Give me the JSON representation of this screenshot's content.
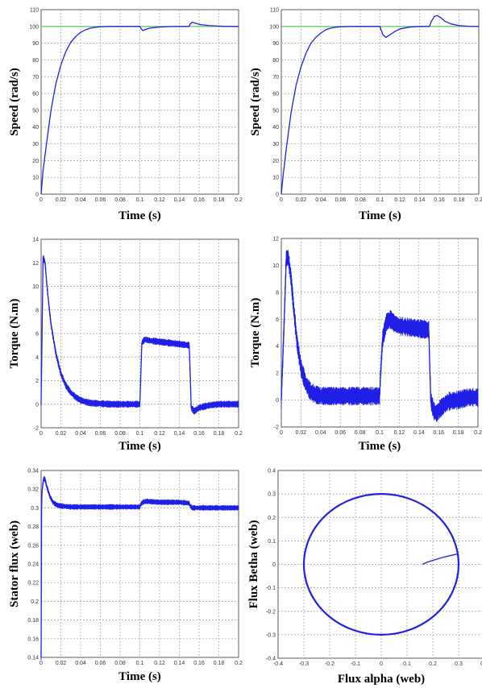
{
  "chart_data": [
    {
      "type": "line",
      "xlabel": "Time (s)",
      "ylabel": "Speed (rad/s)",
      "xlim": [
        0,
        0.2
      ],
      "ylim": [
        0,
        110
      ],
      "xticks": [
        "0",
        "0.02",
        "0.04",
        "0.06",
        "0.08",
        "0.1",
        "0.12",
        "0.14",
        "0.16",
        "0.18",
        "0.2"
      ],
      "yticks": [
        "0",
        "10",
        "20",
        "30",
        "40",
        "50",
        "60",
        "70",
        "80",
        "90",
        "100",
        "110"
      ],
      "grid": true,
      "series": [
        {
          "color": "#66cc66",
          "x": [
            0,
            0.2
          ],
          "y": [
            100,
            100
          ]
        },
        {
          "color": "#1f1fe6",
          "noise": 0,
          "x": [
            0,
            0.002,
            0.005,
            0.01,
            0.015,
            0.02,
            0.025,
            0.03,
            0.035,
            0.04,
            0.045,
            0.05,
            0.055,
            0.06,
            0.07,
            0.08,
            0.09,
            0.1,
            0.101,
            0.103,
            0.106,
            0.11,
            0.12,
            0.13,
            0.14,
            0.15,
            0.151,
            0.153,
            0.156,
            0.16,
            0.17,
            0.18,
            0.19,
            0.2
          ],
          "y": [
            0,
            14,
            28,
            50,
            66,
            77,
            85,
            90.5,
            94,
            96.5,
            98,
            99,
            99.5,
            99.8,
            100,
            100,
            100,
            100,
            99,
            97.5,
            98.3,
            99,
            99.6,
            99.9,
            100,
            100,
            101.5,
            102.5,
            102,
            101.2,
            100.5,
            100.2,
            100,
            100
          ]
        }
      ]
    },
    {
      "type": "line",
      "xlabel": "Time (s)",
      "ylabel": "Speed (rad/s)",
      "xlim": [
        0,
        0.2
      ],
      "ylim": [
        0,
        110
      ],
      "xticks": [
        "0",
        "0.02",
        "0.04",
        "0.06",
        "0.08",
        "0.1",
        "0.12",
        "0.14",
        "0.16",
        "0.18",
        "0.2"
      ],
      "yticks": [
        "0",
        "10",
        "20",
        "30",
        "40",
        "50",
        "60",
        "70",
        "80",
        "90",
        "100",
        "110"
      ],
      "grid": true,
      "series": [
        {
          "color": "#66cc66",
          "x": [
            0,
            0.2
          ],
          "y": [
            100,
            100
          ]
        },
        {
          "color": "#1f1fe6",
          "noise": 0,
          "x": [
            0,
            0.002,
            0.005,
            0.01,
            0.015,
            0.02,
            0.025,
            0.03,
            0.035,
            0.04,
            0.045,
            0.05,
            0.055,
            0.06,
            0.07,
            0.08,
            0.09,
            0.1,
            0.101,
            0.103,
            0.106,
            0.11,
            0.115,
            0.12,
            0.13,
            0.14,
            0.15,
            0.152,
            0.155,
            0.158,
            0.162,
            0.166,
            0.172,
            0.18,
            0.19,
            0.2
          ],
          "y": [
            0,
            12,
            27,
            49,
            65,
            76,
            84,
            90,
            93.5,
            96,
            98,
            99,
            99.5,
            99.8,
            100,
            100,
            100,
            100,
            98,
            95,
            93.5,
            95,
            97,
            98.5,
            99.6,
            100,
            100,
            103,
            106,
            106.5,
            105,
            103,
            101.5,
            100.5,
            100.1,
            100
          ]
        }
      ]
    },
    {
      "type": "line",
      "xlabel": "Time (s)",
      "ylabel": "Torque (N.m)",
      "xlim": [
        0,
        0.2
      ],
      "ylim": [
        -2,
        14
      ],
      "xticks": [
        "0",
        "0.02",
        "0.04",
        "0.06",
        "0.08",
        "0.1",
        "0.12",
        "0.14",
        "0.16",
        "0.18",
        "0.2"
      ],
      "yticks": [
        "-2",
        "0",
        "2",
        "4",
        "6",
        "8",
        "10",
        "12",
        "14"
      ],
      "grid": true,
      "series": [
        {
          "color": "#1f1fe6",
          "noise": 0.3,
          "x": [
            0,
            0.002,
            0.004,
            0.006,
            0.008,
            0.01,
            0.015,
            0.02,
            0.025,
            0.03,
            0.035,
            0.04,
            0.045,
            0.05,
            0.06,
            0.07,
            0.08,
            0.09,
            0.1,
            0.101,
            0.102,
            0.105,
            0.11,
            0.12,
            0.13,
            0.14,
            0.15,
            0.151,
            0.152,
            0.155,
            0.16,
            0.17,
            0.18,
            0.19,
            0.2
          ],
          "y": [
            0,
            12.5,
            12,
            10,
            8.3,
            6.8,
            4.3,
            2.6,
            1.6,
            1,
            0.6,
            0.35,
            0.2,
            0.1,
            0.05,
            0,
            0,
            0,
            0,
            2.5,
            5.2,
            5.5,
            5.4,
            5.3,
            5.2,
            5.1,
            5,
            2.5,
            -0.3,
            -0.6,
            -0.3,
            -0.1,
            0,
            0,
            0
          ]
        }
      ]
    },
    {
      "type": "line",
      "xlabel": "Time (s)",
      "ylabel": "Torque (N.m)",
      "xlim": [
        0,
        0.2
      ],
      "ylim": [
        -2,
        12
      ],
      "xticks": [
        "0",
        "0.02",
        "0.04",
        "0.06",
        "0.08",
        "0.1",
        "0.12",
        "0.14",
        "0.16",
        "0.18",
        "0.2"
      ],
      "yticks": [
        "-2",
        "0",
        "2",
        "4",
        "6",
        "8",
        "10",
        "12"
      ],
      "grid": true,
      "series": [
        {
          "color": "#1f1fe6",
          "noise": 0.7,
          "x": [
            0,
            0.003,
            0.005,
            0.007,
            0.01,
            0.013,
            0.016,
            0.02,
            0.025,
            0.03,
            0.035,
            0.04,
            0.05,
            0.06,
            0.07,
            0.08,
            0.09,
            0.1,
            0.101,
            0.103,
            0.107,
            0.111,
            0.115,
            0.12,
            0.13,
            0.14,
            0.15,
            0.151,
            0.152,
            0.155,
            0.158,
            0.162,
            0.17,
            0.18,
            0.19,
            0.2
          ],
          "y": [
            0,
            6,
            10.5,
            10.6,
            9,
            6.5,
            4.3,
            2.4,
            1.2,
            0.6,
            0.4,
            0.3,
            0.3,
            0.3,
            0.3,
            0.3,
            0.3,
            0.3,
            2,
            4.5,
            5.8,
            6,
            5.7,
            5.5,
            5.4,
            5.3,
            5.2,
            2.5,
            0,
            -0.8,
            -1,
            -0.6,
            -0.1,
            0,
            0.2,
            0.2
          ]
        }
      ]
    },
    {
      "type": "line",
      "xlabel": "Time (s)",
      "ylabel": "Stator flux (web)",
      "xlim": [
        0,
        0.2
      ],
      "ylim": [
        0.14,
        0.34
      ],
      "xticks": [
        "0",
        "0.02",
        "0.04",
        "0.06",
        "0.08",
        "0.1",
        "0.12",
        "0.14",
        "0.16",
        "0.18",
        "0.2"
      ],
      "yticks": [
        "0.14",
        "0.16",
        "0.18",
        "0.2",
        "0.22",
        "0.24",
        "0.26",
        "0.28",
        "0.3",
        "0.32",
        "0.34"
      ],
      "grid": true,
      "series": [
        {
          "color": "#1f1fe6",
          "noise": 0.003,
          "x": [
            0,
            0.0005,
            0.001,
            0.002,
            0.003,
            0.004,
            0.006,
            0.009,
            0.012,
            0.016,
            0.02,
            0.03,
            0.04,
            0.06,
            0.08,
            0.1,
            0.101,
            0.103,
            0.106,
            0.12,
            0.14,
            0.15,
            0.151,
            0.153,
            0.17,
            0.2
          ],
          "y": [
            0.14,
            0.3,
            0.318,
            0.328,
            0.332,
            0.33,
            0.322,
            0.312,
            0.306,
            0.303,
            0.302,
            0.301,
            0.301,
            0.301,
            0.301,
            0.301,
            0.304,
            0.306,
            0.307,
            0.306,
            0.306,
            0.305,
            0.302,
            0.3,
            0.3,
            0.3
          ]
        }
      ]
    },
    {
      "type": "line",
      "xlabel": "Flux alpha (web)",
      "ylabel": "Flux Betha (web)",
      "xlim": [
        -0.4,
        0.4
      ],
      "ylim": [
        -0.4,
        0.4
      ],
      "xticks": [
        "-0.4",
        "-0.3",
        "-0.2",
        "-0.1",
        "0",
        "0.1",
        "0.2",
        "0.3",
        "0.4"
      ],
      "yticks": [
        "-0.4",
        "-0.3",
        "-0.2",
        "-0.1",
        "0",
        "0.1",
        "0.2",
        "0.3",
        "0.4"
      ],
      "grid": true,
      "circle": {
        "cx": 0,
        "cy": 0,
        "r": 0.3,
        "color": "#1f1fe6"
      },
      "series": [
        {
          "color": "#1f1fe6",
          "noise": 0,
          "x": [
            0.16,
            0.18,
            0.21,
            0.24,
            0.27,
            0.3
          ],
          "y": [
            0.0,
            0.01,
            0.02,
            0.03,
            0.038,
            0.045
          ]
        }
      ]
    }
  ]
}
